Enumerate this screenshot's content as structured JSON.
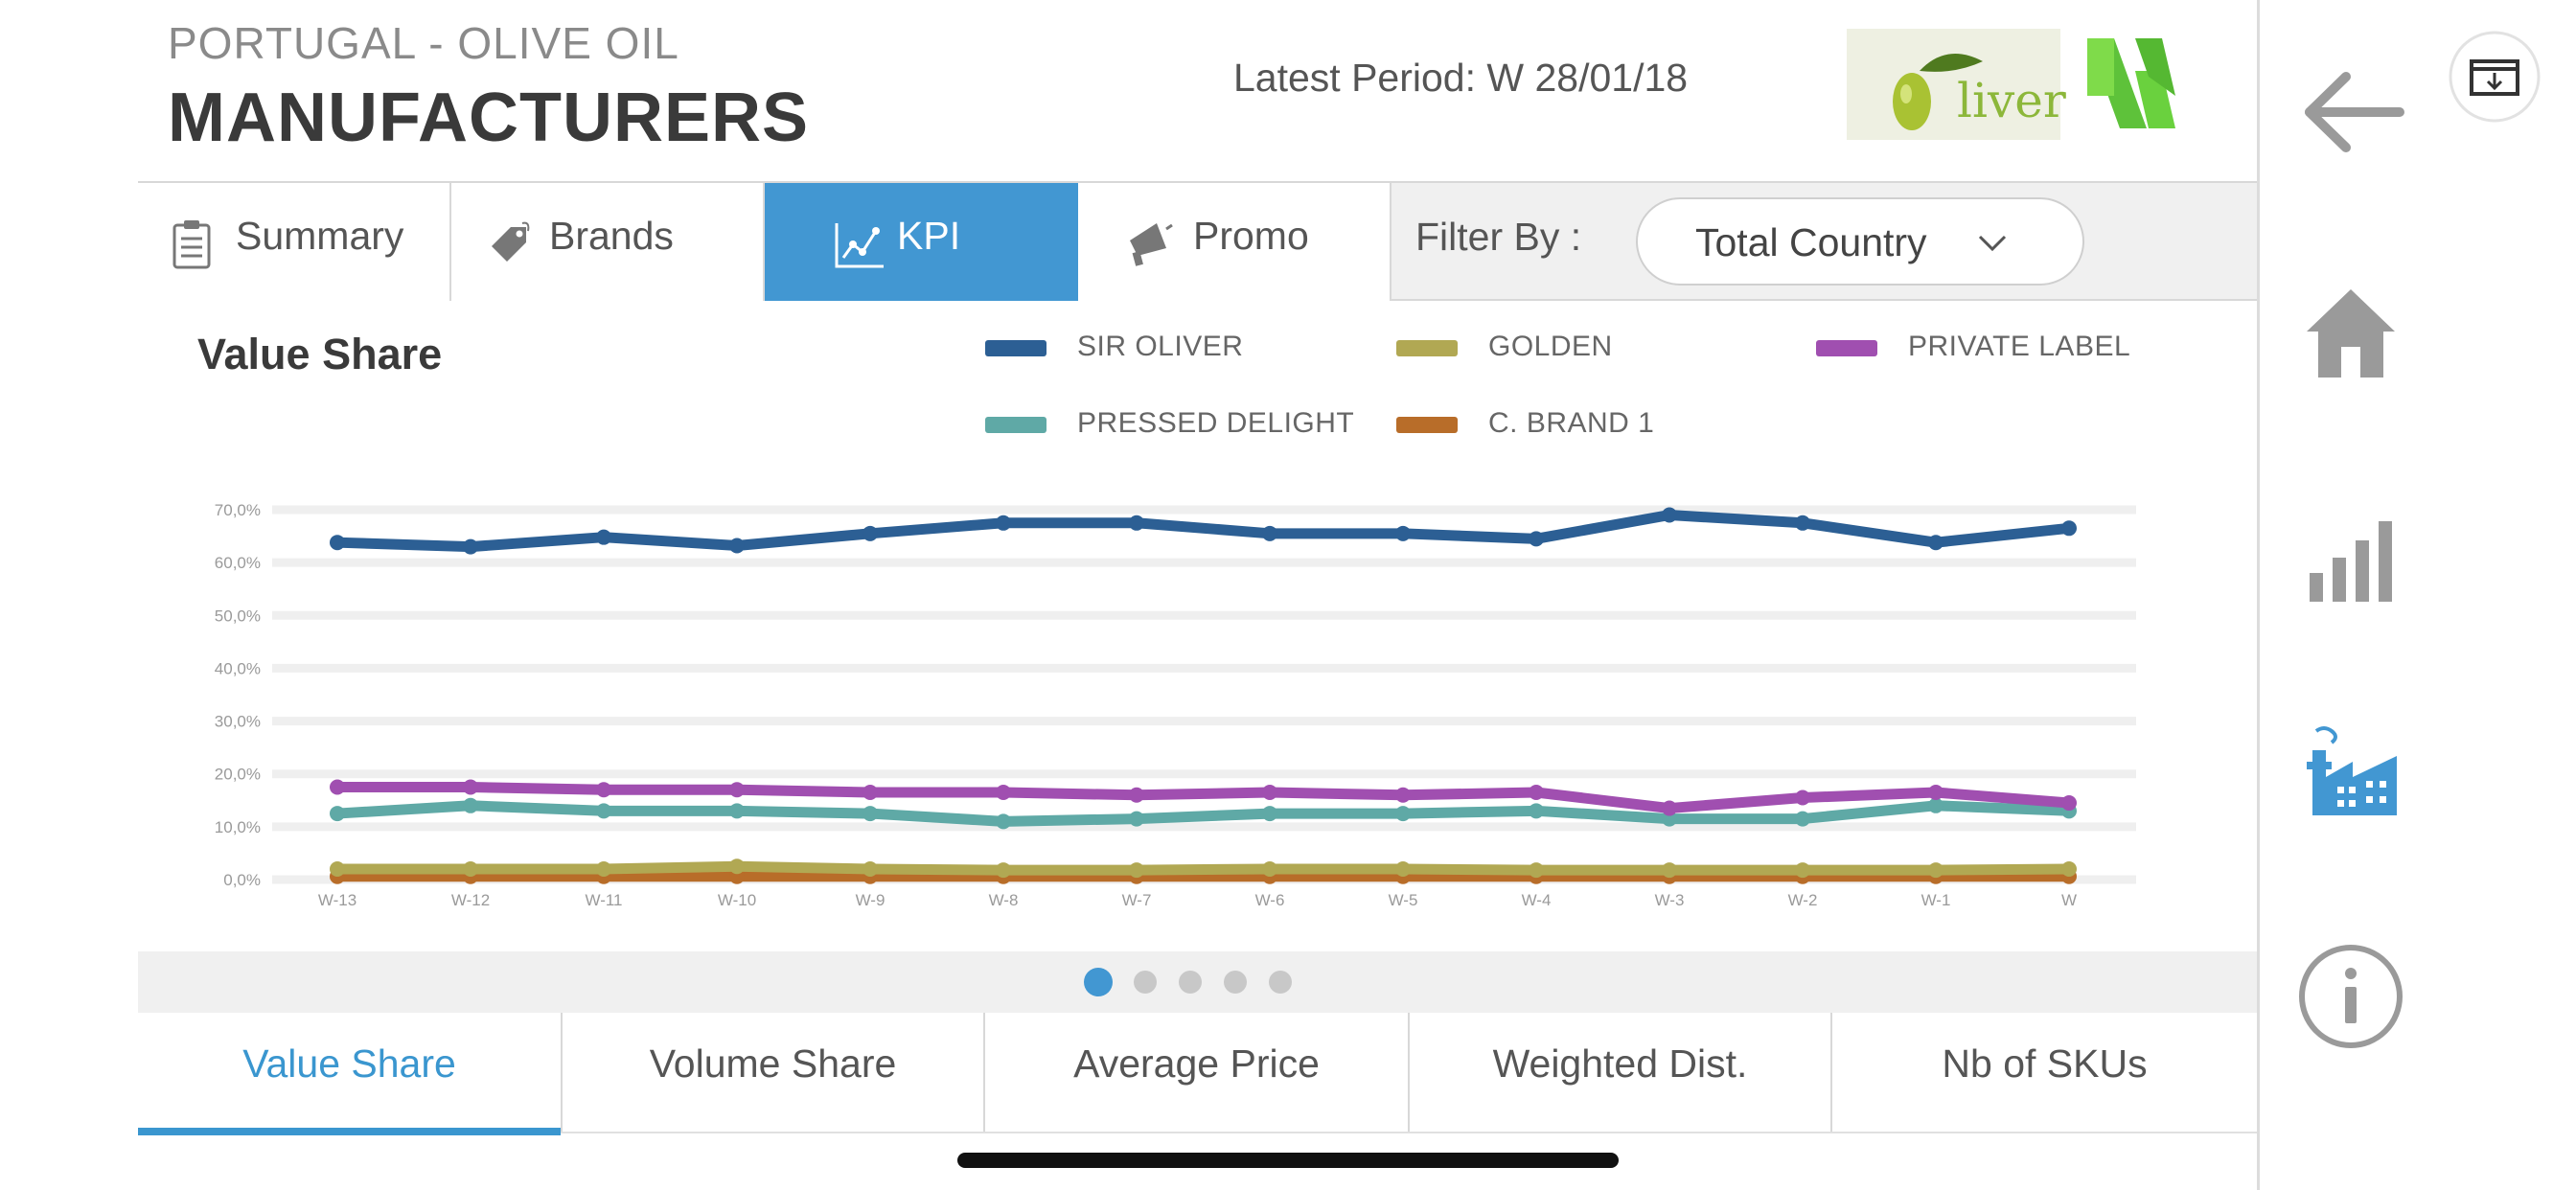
{
  "header": {
    "subtitle": "PORTUGAL - OLIVE OIL",
    "title": "MANUFACTURERS",
    "latest_period": "Latest Period: W 28/01/18",
    "logo_text": "liver"
  },
  "tabs": [
    {
      "label": "Summary",
      "icon": "clipboard-icon",
      "active": false
    },
    {
      "label": "Brands",
      "icon": "tag-icon",
      "active": false
    },
    {
      "label": "KPI",
      "icon": "line-chart-icon",
      "active": true
    },
    {
      "label": "Promo",
      "icon": "megaphone-icon",
      "active": false
    }
  ],
  "filter": {
    "label": "Filter By :",
    "value": "Total Country"
  },
  "chart_data": {
    "type": "line",
    "title": "Value Share",
    "xlabel": "",
    "ylabel": "",
    "ylim": [
      0,
      70
    ],
    "y_ticks": [
      "0,0%",
      "10,0%",
      "20,0%",
      "30,0%",
      "40,0%",
      "50,0%",
      "60,0%",
      "70,0%"
    ],
    "categories": [
      "W-13",
      "W-12",
      "W-11",
      "W-10",
      "W-9",
      "W-8",
      "W-7",
      "W-6",
      "W-5",
      "W-4",
      "W-3",
      "W-2",
      "W-1",
      "W"
    ],
    "legend_position": "top",
    "grid": true,
    "series": [
      {
        "name": "SIR OLIVER",
        "color": "#2c5f94",
        "values": [
          63.8,
          63.0,
          64.8,
          63.2,
          65.5,
          67.5,
          67.5,
          65.5,
          65.5,
          64.5,
          69.0,
          67.5,
          63.8,
          66.5
        ]
      },
      {
        "name": "GOLDEN",
        "color": "#b1a853",
        "values": [
          2.0,
          2.0,
          2.0,
          2.5,
          2.0,
          1.8,
          1.8,
          2.0,
          2.0,
          1.8,
          1.8,
          1.8,
          1.8,
          2.0
        ]
      },
      {
        "name": "PRIVATE LABEL",
        "color": "#a04fb0",
        "values": [
          17.5,
          17.5,
          17.0,
          17.0,
          16.5,
          16.5,
          16.0,
          16.5,
          16.0,
          16.5,
          13.5,
          15.5,
          16.5,
          14.5
        ]
      },
      {
        "name": "PRESSED DELIGHT",
        "color": "#5fa9a6",
        "values": [
          12.5,
          14.0,
          13.0,
          13.0,
          12.5,
          11.0,
          11.5,
          12.5,
          12.5,
          13.0,
          11.5,
          11.5,
          14.0,
          13.0
        ]
      },
      {
        "name": "C. BRAND 1",
        "color": "#b86d29",
        "values": [
          0.6,
          0.6,
          0.6,
          0.6,
          0.6,
          0.6,
          0.6,
          0.6,
          0.6,
          0.6,
          0.6,
          0.6,
          0.6,
          0.6
        ]
      }
    ]
  },
  "pager": {
    "count": 5,
    "active_index": 0
  },
  "bottom_tabs": [
    {
      "label": "Value Share",
      "active": true
    },
    {
      "label": "Volume Share",
      "active": false
    },
    {
      "label": "Average Price",
      "active": false
    },
    {
      "label": "Weighted Dist.",
      "active": false
    },
    {
      "label": "Nb of SKUs",
      "active": false
    }
  ],
  "sidebar": {
    "icons": [
      "download-icon",
      "back-arrow-icon",
      "home-icon",
      "bar-chart-icon",
      "factory-icon",
      "info-icon"
    ],
    "accent": "#4297d2",
    "icon_color": "#9a9a9a"
  }
}
